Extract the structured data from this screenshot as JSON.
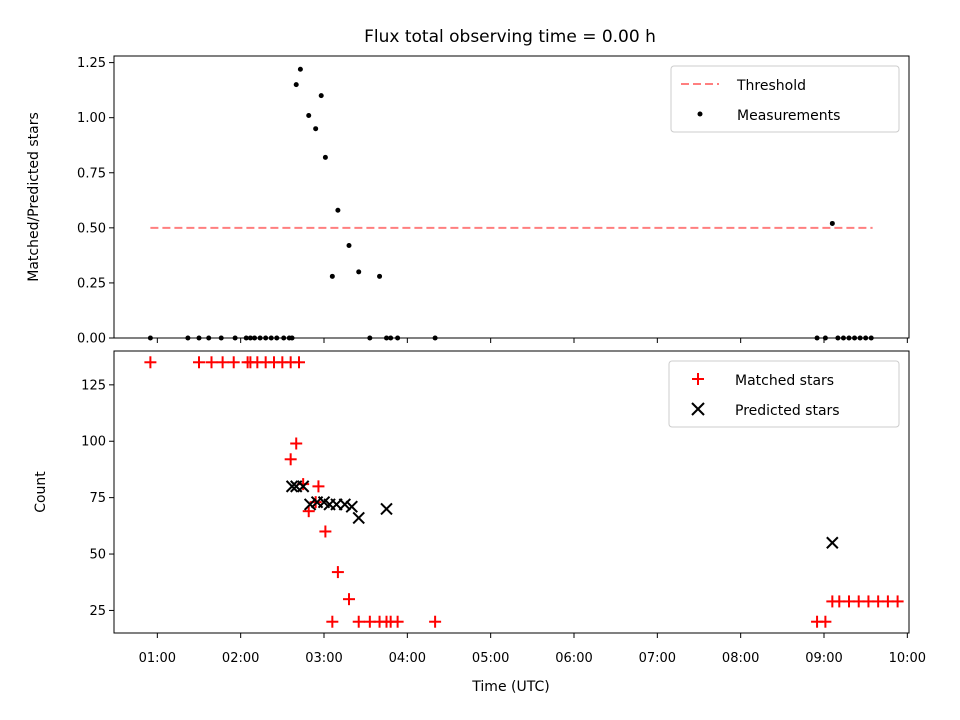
{
  "chart_data": {
    "title": "Flux total observing time = 0.00 h",
    "x_axis": {
      "label": "Time (UTC)",
      "tick_labels": [
        "01:00",
        "02:00",
        "03:00",
        "04:00",
        "05:00",
        "06:00",
        "07:00",
        "08:00",
        "09:00",
        "10:00"
      ],
      "tick_hours": [
        1,
        2,
        3,
        4,
        5,
        6,
        7,
        8,
        9,
        10
      ],
      "range_hours": [
        0.48,
        10.02
      ]
    },
    "colors": {
      "measurements": "#000000",
      "threshold": "#ff7f7f",
      "matched": "#ff0000",
      "predicted": "#000000"
    },
    "panels": [
      {
        "type": "scatter",
        "ylabel": "Matched/Predicted stars",
        "ylim": [
          0.0,
          1.28
        ],
        "yticks": [
          0.0,
          0.25,
          0.5,
          0.75,
          1.0,
          1.25
        ],
        "ytick_labels": [
          "0.00",
          "0.25",
          "0.50",
          "0.75",
          "1.00",
          "1.25"
        ],
        "legend": [
          "Threshold",
          "Measurements"
        ],
        "legend_position": "top-right",
        "threshold": {
          "name": "Threshold",
          "y": 0.5,
          "x_range": [
            "00:55",
            "09:35"
          ]
        },
        "series": [
          {
            "name": "Measurements",
            "x": [
              "00:55",
              "01:22",
              "01:30",
              "01:37",
              "01:46",
              "01:56",
              "02:04",
              "02:07",
              "02:10",
              "02:14",
              "02:18",
              "02:22",
              "02:26",
              "02:31",
              "02:35",
              "02:40",
              "02:37",
              "02:43",
              "02:49",
              "02:54",
              "02:58",
              "03:01",
              "03:06",
              "03:10",
              "03:18",
              "03:25",
              "03:33",
              "03:40",
              "03:45",
              "03:48",
              "03:53",
              "04:20",
              "08:55",
              "09:01",
              "09:06",
              "09:10",
              "09:14",
              "09:18",
              "09:22",
              "09:26",
              "09:30",
              "09:34"
            ],
            "y": [
              0,
              0,
              0,
              0,
              0,
              0,
              0,
              0,
              0,
              0,
              0,
              0,
              0,
              0,
              0,
              1.15,
              0,
              1.22,
              1.01,
              0.95,
              1.1,
              0.82,
              0.28,
              0.58,
              0.42,
              0.3,
              0,
              0.28,
              0,
              0,
              0,
              0,
              0,
              0,
              0.52,
              0,
              0,
              0,
              0,
              0,
              0,
              0
            ]
          }
        ]
      },
      {
        "type": "scatter",
        "ylabel": "Count",
        "ylim": [
          15,
          140
        ],
        "yticks": [
          25,
          50,
          75,
          100,
          125
        ],
        "ytick_labels": [
          "25",
          "50",
          "75",
          "100",
          "125"
        ],
        "legend": [
          "Matched stars",
          "Predicted stars"
        ],
        "legend_position": "top-right",
        "series": [
          {
            "name": "Matched stars",
            "marker": "+",
            "x": [
              "00:55",
              "01:30",
              "01:39",
              "01:47",
              "01:55",
              "02:05",
              "02:07",
              "02:12",
              "02:18",
              "02:24",
              "02:30",
              "02:36",
              "02:42",
              "02:36",
              "02:40",
              "02:45",
              "02:49",
              "02:54",
              "02:56",
              "03:01",
              "03:06",
              "03:10",
              "03:18",
              "03:25",
              "03:33",
              "03:40",
              "03:45",
              "03:48",
              "03:53",
              "04:20",
              "08:55",
              "09:01",
              "09:06",
              "09:11",
              "09:18",
              "09:25",
              "09:32",
              "09:39",
              "09:46",
              "09:53"
            ],
            "y": [
              135,
              135,
              135,
              135,
              135,
              135,
              135,
              135,
              135,
              135,
              135,
              135,
              135,
              92,
              99,
              81,
              69,
              73,
              80,
              60,
              20,
              42,
              30,
              20,
              20,
              20,
              20,
              20,
              20,
              20,
              20,
              20,
              29,
              29,
              29,
              29,
              29,
              29,
              29,
              29
            ]
          },
          {
            "name": "Predicted stars",
            "marker": "x",
            "x": [
              "02:37",
              "02:40",
              "02:45",
              "02:50",
              "02:55",
              "03:00",
              "03:04",
              "03:09",
              "03:15",
              "03:20",
              "03:25",
              "03:45",
              "09:06"
            ],
            "y": [
              80,
              80,
              80,
              72,
              73,
              73,
              72,
              72,
              72,
              71,
              66,
              70,
              55
            ]
          }
        ]
      }
    ]
  }
}
